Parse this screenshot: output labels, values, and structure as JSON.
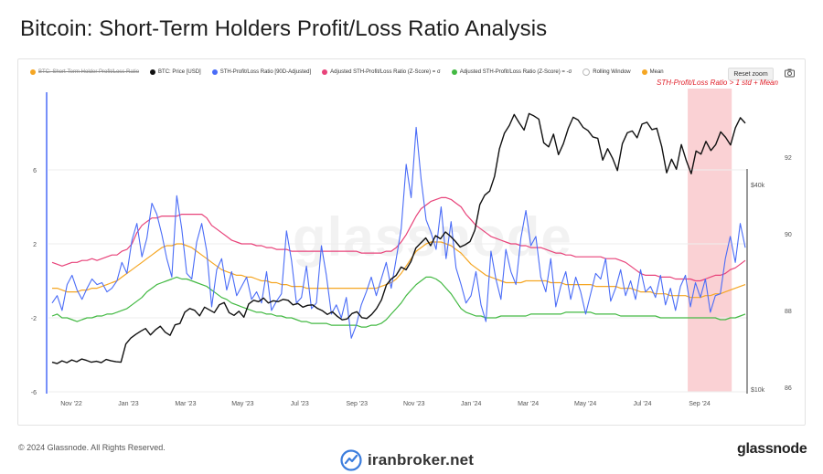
{
  "title": "Bitcoin: Short-Term Holders Profit/Loss Ratio Analysis",
  "legend": [
    {
      "label": "BTC: Short-Term Holder Profit/Loss Ratio",
      "color": "#f5a623",
      "disabled": true
    },
    {
      "label": "BTC: Price [USD]",
      "color": "#111111",
      "disabled": false
    },
    {
      "label": "STH-Profit/Loss Ratio [90D-Adjusted]",
      "color": "#4a6cf7",
      "disabled": false
    },
    {
      "label": "Adjusted STH-Profit/Loss Ratio (Z-Score) = σ",
      "color": "#e8437a",
      "disabled": false
    },
    {
      "label": "Adjusted STH-Profit/Loss Ratio (Z-Score) = -σ",
      "color": "#43b943",
      "disabled": false
    },
    {
      "label": "Rolling Window",
      "color": "#ffffff",
      "disabled": false
    },
    {
      "label": "Mean",
      "color": "#f5a623",
      "disabled": false
    }
  ],
  "reset_zoom_label": "Reset zoom",
  "annotation": "STH-Profit/Loss Ratio > 1 std + Mean",
  "ghost_watermark": "glassnode",
  "footer_copyright": "© 2024 Glassnode. All Rights Reserved.",
  "footer_brand": "glassnode",
  "watermark_site": "iranbroker.net",
  "icons": {
    "camera": "camera-icon",
    "logo": "iranbroker-logo-icon"
  },
  "chart_data": {
    "type": "line",
    "x_tick_labels": [
      "Nov '22",
      "Jan '23",
      "Mar '23",
      "May '23",
      "Jul '23",
      "Sep '23",
      "Nov '23",
      "Jan '24",
      "Mar '24",
      "May '24",
      "Jul '24",
      "Sep '24"
    ],
    "left_axis": {
      "ticks": [
        "6",
        "2",
        "-2",
        "-6"
      ],
      "ylim": [
        -6,
        10
      ]
    },
    "right_axis_price_labels": [
      "$40k",
      "$10k"
    ],
    "right_axis_ticks": [
      "92",
      "90",
      "88",
      "86"
    ],
    "highlight_region": {
      "x_start": 0.915,
      "x_end": 0.978,
      "color": "#f9c9cd"
    },
    "series": [
      {
        "name": "BTC: Price [USD]",
        "axis": "right",
        "color": "#111111",
        "values": [
          16.5,
          16.2,
          16.8,
          16.4,
          17.0,
          16.6,
          17.2,
          16.9,
          16.5,
          16.7,
          16.4,
          17.1,
          16.8,
          16.6,
          16.5,
          20.5,
          21.8,
          22.6,
          23.3,
          23.9,
          22.5,
          23.6,
          24.4,
          23.1,
          22.4,
          24.7,
          25.0,
          27.5,
          28.3,
          27.9,
          26.7,
          28.6,
          28.0,
          27.4,
          29.1,
          29.6,
          27.4,
          26.8,
          27.7,
          26.4,
          29.3,
          30.1,
          29.8,
          30.6,
          29.5,
          30.0,
          29.8,
          30.3,
          30.1,
          29.1,
          29.4,
          28.6,
          29.0,
          29.1,
          28.3,
          27.8,
          27.0,
          27.6,
          26.6,
          25.8,
          26.0,
          27.2,
          27.6,
          26.3,
          26.1,
          27.0,
          28.3,
          30.2,
          33.5,
          34.8,
          35.6,
          37.4,
          36.8,
          38.6,
          41.6,
          42.7,
          43.8,
          42.1,
          44.3,
          43.6,
          45.1,
          44.2,
          43.1,
          41.8,
          42.3,
          43.0,
          45.5,
          51.1,
          53.2,
          54.1,
          57.3,
          63.4,
          66.8,
          68.5,
          70.9,
          69.1,
          67.5,
          71.1,
          70.6,
          69.9,
          64.7,
          63.8,
          66.6,
          62.1,
          64.5,
          67.9,
          70.3,
          69.7,
          68.1,
          67.4,
          66.0,
          65.7,
          60.9,
          63.4,
          61.3,
          58.6,
          64.5,
          66.9,
          67.3,
          65.8,
          68.8,
          69.2,
          67.6,
          67.9,
          63.9,
          58.1,
          61.1,
          58.9,
          64.3,
          60.8,
          57.9,
          62.9,
          62.2,
          65.0,
          63.0,
          64.3,
          67.1,
          65.9,
          64.2,
          68.0,
          70.2,
          69.0
        ]
      },
      {
        "name": "STH-Profit/Loss Ratio [90D-Adjusted]",
        "axis": "left",
        "color": "#4a6cf7",
        "values": [
          -1.2,
          -0.8,
          -1.6,
          -0.2,
          0.3,
          -0.5,
          -1.0,
          -0.4,
          0.1,
          -0.2,
          -0.1,
          -0.6,
          -0.4,
          0.0,
          1.0,
          0.4,
          2.2,
          3.1,
          1.3,
          2.3,
          4.2,
          3.6,
          2.5,
          1.2,
          0.2,
          4.6,
          2.8,
          0.4,
          0.1,
          2.1,
          3.1,
          1.6,
          -1.4,
          0.6,
          1.2,
          -0.5,
          0.5,
          -0.8,
          -0.3,
          0.2,
          -1.0,
          -0.6,
          -1.2,
          0.5,
          -1.6,
          -1.1,
          -0.7,
          2.7,
          1.1,
          -1.2,
          -0.9,
          0.8,
          -1.5,
          -1.2,
          1.9,
          0.3,
          -1.8,
          -1.3,
          -2.0,
          -0.9,
          -3.1,
          -2.4,
          -1.3,
          -0.6,
          0.2,
          -0.8,
          0.1,
          1.0,
          -0.4,
          1.2,
          2.8,
          6.3,
          4.5,
          8.3,
          5.5,
          3.3,
          2.6,
          1.7,
          4.0,
          1.2,
          3.2,
          0.7,
          -0.2,
          -1.2,
          -0.8,
          0.5,
          -1.3,
          -2.2,
          1.6,
          0.1,
          -1.0,
          1.7,
          0.5,
          -0.2,
          2.3,
          3.8,
          1.9,
          2.4,
          0.2,
          -0.6,
          1.2,
          -1.4,
          -0.3,
          0.5,
          -1.0,
          0.2,
          -0.6,
          -1.8,
          -0.7,
          0.4,
          0.1,
          1.2,
          -1.1,
          -0.4,
          0.6,
          -0.8,
          0.0,
          -1.0,
          0.6,
          -0.6,
          -0.3,
          -0.9,
          0.3,
          -1.3,
          -0.4,
          -1.6,
          -0.3,
          0.3,
          -1.4,
          -0.1,
          -0.9,
          0.1,
          -1.7,
          -0.8,
          -0.7,
          1.2,
          2.4,
          1.0,
          3.1,
          1.8
        ]
      },
      {
        "name": "Adjusted STH-Profit/Loss Ratio (Z-Score) = σ",
        "axis": "left",
        "color": "#e8437a",
        "values": [
          1.0,
          0.9,
          0.8,
          0.9,
          1.0,
          1.0,
          1.1,
          1.1,
          1.2,
          1.1,
          1.2,
          1.3,
          1.4,
          1.4,
          1.6,
          1.7,
          2.0,
          2.6,
          3.0,
          3.2,
          3.4,
          3.4,
          3.5,
          3.5,
          3.5,
          3.5,
          3.6,
          3.6,
          3.6,
          3.6,
          3.6,
          3.4,
          3.0,
          2.8,
          2.6,
          2.4,
          2.2,
          2.1,
          2.0,
          2.0,
          2.0,
          1.9,
          1.9,
          1.8,
          1.8,
          1.7,
          1.7,
          1.7,
          1.6,
          1.6,
          1.6,
          1.6,
          1.6,
          1.6,
          1.6,
          1.6,
          1.6,
          1.6,
          1.6,
          1.6,
          1.6,
          1.6,
          1.5,
          1.5,
          1.5,
          1.5,
          1.5,
          1.6,
          1.6,
          1.8,
          2.1,
          2.5,
          3.0,
          3.5,
          3.9,
          4.1,
          4.3,
          4.4,
          4.5,
          4.5,
          4.4,
          4.2,
          4.0,
          3.6,
          3.3,
          3.0,
          2.8,
          2.6,
          2.4,
          2.3,
          2.2,
          2.1,
          2.0,
          2.0,
          1.9,
          1.9,
          1.8,
          1.8,
          1.8,
          1.7,
          1.6,
          1.5,
          1.5,
          1.4,
          1.4,
          1.3,
          1.3,
          1.3,
          1.3,
          1.3,
          1.3,
          1.2,
          1.2,
          1.2,
          1.1,
          1.0,
          0.8,
          0.6,
          0.4,
          0.3,
          0.3,
          0.3,
          0.2,
          0.2,
          0.2,
          0.1,
          0.1,
          0.1,
          0.1,
          0.0,
          0.0,
          0.1,
          0.2,
          0.3,
          0.3,
          0.4,
          0.6,
          0.7,
          0.9,
          1.1
        ]
      },
      {
        "name": "Adjusted STH-Profit/Loss Ratio (Z-Score) = -σ",
        "axis": "left",
        "color": "#43b943",
        "values": [
          -1.9,
          -1.8,
          -2.0,
          -2.0,
          -2.1,
          -2.2,
          -2.1,
          -2.0,
          -2.0,
          -1.9,
          -1.9,
          -1.8,
          -1.8,
          -1.7,
          -1.6,
          -1.5,
          -1.3,
          -1.1,
          -0.9,
          -0.6,
          -0.4,
          -0.2,
          -0.1,
          0.0,
          0.1,
          0.2,
          0.1,
          0.1,
          0.0,
          -0.1,
          -0.2,
          -0.3,
          -0.5,
          -0.7,
          -0.9,
          -1.0,
          -1.2,
          -1.3,
          -1.4,
          -1.5,
          -1.6,
          -1.7,
          -1.7,
          -1.8,
          -1.8,
          -1.9,
          -1.9,
          -2.0,
          -2.0,
          -2.1,
          -2.2,
          -2.2,
          -2.3,
          -2.3,
          -2.3,
          -2.3,
          -2.4,
          -2.4,
          -2.4,
          -2.4,
          -2.4,
          -2.4,
          -2.5,
          -2.5,
          -2.4,
          -2.4,
          -2.3,
          -2.1,
          -1.8,
          -1.5,
          -1.2,
          -0.8,
          -0.5,
          -0.2,
          0.0,
          0.2,
          0.2,
          0.1,
          -0.1,
          -0.4,
          -0.7,
          -1.1,
          -1.5,
          -1.7,
          -1.8,
          -1.9,
          -1.9,
          -2.0,
          -2.0,
          -2.0,
          -1.9,
          -1.9,
          -1.9,
          -1.9,
          -1.9,
          -1.9,
          -1.8,
          -1.8,
          -1.8,
          -1.8,
          -1.8,
          -1.8,
          -1.8,
          -1.7,
          -1.7,
          -1.7,
          -1.7,
          -1.7,
          -1.7,
          -1.8,
          -1.8,
          -1.8,
          -1.8,
          -1.8,
          -1.9,
          -1.9,
          -1.9,
          -1.9,
          -1.9,
          -1.9,
          -1.9,
          -1.9,
          -2.0,
          -2.0,
          -2.0,
          -2.0,
          -2.0,
          -2.0,
          -2.0,
          -2.0,
          -2.0,
          -2.0,
          -2.0,
          -2.0,
          -2.1,
          -2.1,
          -2.0,
          -2.0,
          -1.9,
          -1.8
        ]
      },
      {
        "name": "Mean",
        "axis": "left",
        "color": "#f5a623",
        "values": [
          -0.4,
          -0.4,
          -0.5,
          -0.6,
          -0.6,
          -0.6,
          -0.5,
          -0.5,
          -0.4,
          -0.4,
          -0.3,
          -0.2,
          -0.1,
          0.0,
          0.2,
          0.4,
          0.6,
          0.8,
          1.0,
          1.2,
          1.4,
          1.6,
          1.8,
          1.9,
          1.9,
          2.0,
          2.0,
          1.9,
          1.8,
          1.6,
          1.4,
          1.2,
          1.0,
          0.8,
          0.6,
          0.5,
          0.4,
          0.3,
          0.3,
          0.2,
          0.2,
          0.1,
          0.0,
          0.0,
          -0.1,
          -0.1,
          -0.2,
          -0.2,
          -0.3,
          -0.3,
          -0.3,
          -0.4,
          -0.4,
          -0.4,
          -0.4,
          -0.4,
          -0.4,
          -0.4,
          -0.4,
          -0.4,
          -0.4,
          -0.4,
          -0.4,
          -0.4,
          -0.4,
          -0.4,
          -0.3,
          -0.2,
          -0.1,
          0.1,
          0.4,
          0.8,
          1.2,
          1.6,
          1.8,
          2.0,
          2.1,
          2.1,
          2.1,
          2.0,
          1.9,
          1.7,
          1.5,
          1.2,
          0.9,
          0.7,
          0.5,
          0.3,
          0.2,
          0.1,
          0.0,
          -0.1,
          -0.1,
          -0.1,
          -0.1,
          0.0,
          0.0,
          0.0,
          0.0,
          0.0,
          -0.1,
          -0.1,
          -0.1,
          -0.2,
          -0.2,
          -0.2,
          -0.2,
          -0.2,
          -0.2,
          -0.3,
          -0.3,
          -0.3,
          -0.3,
          -0.3,
          -0.4,
          -0.4,
          -0.4,
          -0.5,
          -0.6,
          -0.6,
          -0.6,
          -0.7,
          -0.7,
          -0.7,
          -0.8,
          -0.8,
          -0.8,
          -0.8,
          -0.9,
          -0.9,
          -0.9,
          -0.8,
          -0.8,
          -0.7,
          -0.7,
          -0.6,
          -0.5,
          -0.4,
          -0.3,
          -0.2
        ]
      }
    ]
  }
}
